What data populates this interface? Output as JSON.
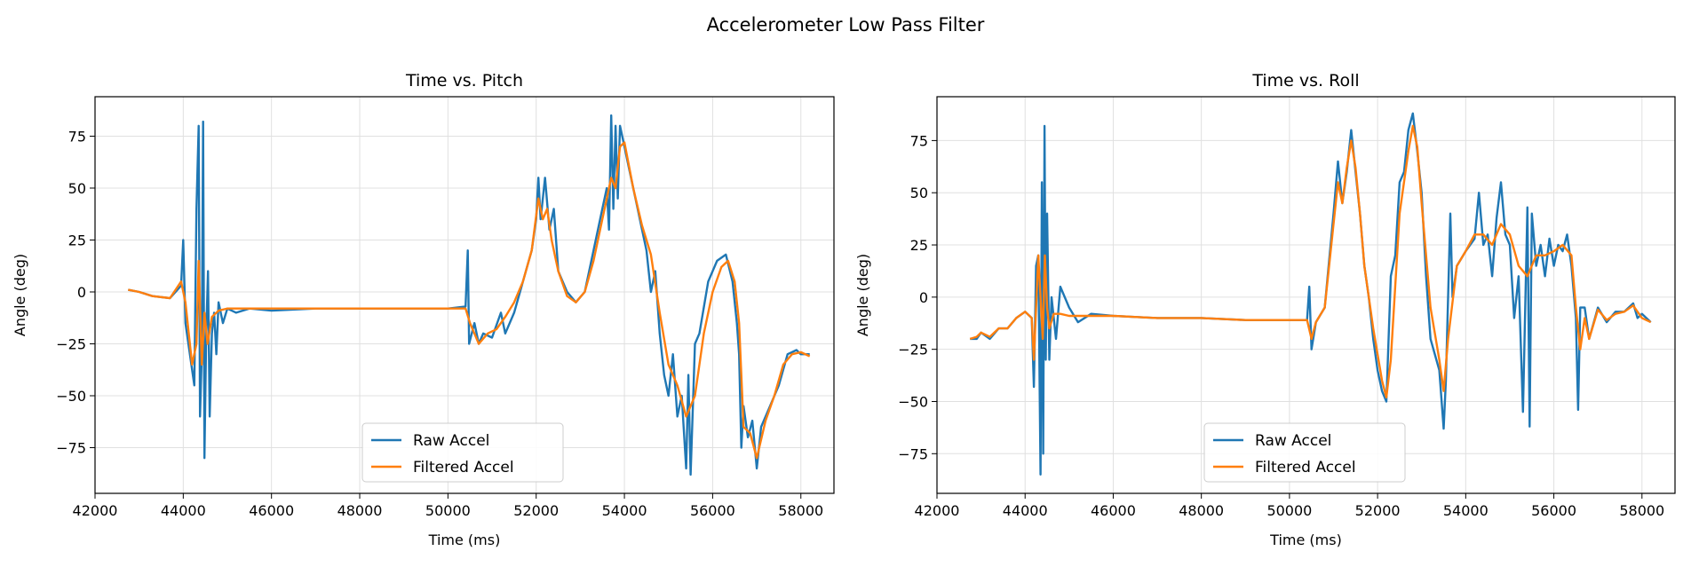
{
  "suptitle": "Accelerometer Low Pass Filter",
  "colors": {
    "raw": "#1f77b4",
    "filtered": "#ff7f0e",
    "grid": "#e0e0e0"
  },
  "chart_data": [
    {
      "type": "line",
      "title": "Time vs. Pitch",
      "xlabel": "Time (ms)",
      "ylabel": "Angle (deg)",
      "xlim": [
        42000,
        58750
      ],
      "ylim": [
        -97,
        94
      ],
      "xticks": [
        42000,
        44000,
        46000,
        48000,
        50000,
        52000,
        54000,
        56000,
        58000
      ],
      "yticks": [
        -75,
        -50,
        -25,
        0,
        25,
        50,
        75
      ],
      "grid": true,
      "legend": "lower center",
      "series": [
        {
          "name": "Raw Accel",
          "x": [
            42750,
            43000,
            43300,
            43700,
            43950,
            44000,
            44050,
            44150,
            44250,
            44300,
            44350,
            44380,
            44420,
            44450,
            44480,
            44520,
            44560,
            44600,
            44650,
            44700,
            44750,
            44800,
            44900,
            45000,
            45200,
            45500,
            46000,
            47000,
            48000,
            49000,
            50000,
            50400,
            50450,
            50480,
            50600,
            50700,
            50800,
            51000,
            51200,
            51300,
            51500,
            51700,
            51900,
            52000,
            52050,
            52100,
            52200,
            52300,
            52400,
            52500,
            52700,
            52900,
            53100,
            53300,
            53500,
            53600,
            53650,
            53700,
            53750,
            53800,
            53850,
            53900,
            54000,
            54100,
            54300,
            54400,
            54500,
            54600,
            54700,
            54800,
            54900,
            55000,
            55100,
            55200,
            55300,
            55400,
            55450,
            55500,
            55600,
            55700,
            55900,
            56100,
            56300,
            56450,
            56550,
            56600,
            56650,
            56700,
            56800,
            56900,
            57000,
            57100,
            57300,
            57500,
            57700,
            57900,
            58000,
            58200
          ],
          "y": [
            1,
            0,
            -2,
            -3,
            3,
            25,
            -15,
            -30,
            -45,
            40,
            80,
            -60,
            -30,
            82,
            -80,
            -20,
            10,
            -60,
            -20,
            -10,
            -30,
            -5,
            -15,
            -8,
            -10,
            -8,
            -9,
            -8,
            -8,
            -8,
            -8,
            -7,
            20,
            -25,
            -15,
            -25,
            -20,
            -22,
            -10,
            -20,
            -10,
            5,
            20,
            35,
            55,
            35,
            55,
            30,
            40,
            10,
            0,
            -5,
            0,
            20,
            40,
            50,
            30,
            85,
            40,
            80,
            45,
            80,
            70,
            60,
            40,
            30,
            20,
            0,
            10,
            -20,
            -40,
            -50,
            -30,
            -60,
            -50,
            -85,
            -40,
            -88,
            -25,
            -20,
            5,
            15,
            18,
            5,
            -15,
            -30,
            -75,
            -55,
            -70,
            -62,
            -85,
            -65,
            -55,
            -45,
            -30,
            -28,
            -30,
            -30
          ]
        },
        {
          "name": "Filtered Accel",
          "x": [
            42750,
            43000,
            43300,
            43700,
            43950,
            44050,
            44200,
            44300,
            44350,
            44420,
            44480,
            44550,
            44650,
            44800,
            45000,
            45500,
            46000,
            47000,
            48000,
            49000,
            50000,
            50400,
            50500,
            50700,
            50900,
            51100,
            51300,
            51500,
            51700,
            51900,
            52050,
            52150,
            52250,
            52350,
            52500,
            52700,
            52900,
            53100,
            53300,
            53500,
            53700,
            53800,
            53900,
            54000,
            54200,
            54400,
            54600,
            54800,
            55000,
            55200,
            55400,
            55600,
            55800,
            56000,
            56200,
            56350,
            56500,
            56600,
            56700,
            56850,
            57000,
            57200,
            57400,
            57600,
            57800,
            58000,
            58200
          ],
          "y": [
            1,
            0,
            -2,
            -3,
            5,
            -5,
            -35,
            -25,
            15,
            -35,
            -10,
            -25,
            -12,
            -9,
            -8,
            -8,
            -8,
            -8,
            -8,
            -8,
            -8,
            -8,
            -15,
            -25,
            -20,
            -18,
            -12,
            -5,
            5,
            20,
            45,
            35,
            40,
            25,
            10,
            -2,
            -5,
            0,
            15,
            35,
            55,
            50,
            70,
            72,
            50,
            32,
            18,
            -10,
            -35,
            -45,
            -60,
            -50,
            -20,
            0,
            12,
            15,
            5,
            -15,
            -65,
            -68,
            -80,
            -62,
            -50,
            -35,
            -30,
            -29,
            -31
          ]
        }
      ]
    },
    {
      "type": "line",
      "title": "Time vs. Roll",
      "xlabel": "Time (ms)",
      "ylabel": "Angle (deg)",
      "xlim": [
        42000,
        58750
      ],
      "ylim": [
        -94,
        96
      ],
      "xticks": [
        42000,
        44000,
        46000,
        48000,
        50000,
        52000,
        54000,
        56000,
        58000
      ],
      "yticks": [
        -75,
        -50,
        -25,
        0,
        25,
        50,
        75
      ],
      "grid": true,
      "legend": "lower center",
      "series": [
        {
          "name": "Raw Accel",
          "x": [
            42750,
            42900,
            43000,
            43200,
            43400,
            43600,
            43800,
            44000,
            44150,
            44200,
            44250,
            44300,
            44350,
            44380,
            44410,
            44440,
            44470,
            44500,
            44550,
            44600,
            44700,
            44800,
            45000,
            45200,
            45500,
            46000,
            47000,
            48000,
            49000,
            50000,
            50400,
            50450,
            50500,
            50600,
            50800,
            51000,
            51100,
            51200,
            51300,
            51400,
            51500,
            51600,
            51700,
            51800,
            51900,
            52000,
            52100,
            52200,
            52300,
            52400,
            52500,
            52600,
            52700,
            52800,
            52900,
            53000,
            53100,
            53200,
            53400,
            53500,
            53550,
            53600,
            53650,
            53700,
            53800,
            54000,
            54200,
            54300,
            54400,
            54500,
            54600,
            54700,
            54800,
            54900,
            55000,
            55100,
            55200,
            55300,
            55400,
            55450,
            55500,
            55600,
            55700,
            55800,
            55900,
            56000,
            56100,
            56200,
            56300,
            56400,
            56500,
            56550,
            56600,
            56700,
            56800,
            57000,
            57200,
            57400,
            57600,
            57800,
            57900,
            58000,
            58200
          ],
          "y": [
            -20,
            -20,
            -17,
            -20,
            -15,
            -15,
            -10,
            -7,
            -10,
            -43,
            15,
            20,
            -85,
            55,
            -75,
            82,
            -30,
            40,
            -30,
            0,
            -20,
            5,
            -5,
            -12,
            -8,
            -9,
            -10,
            -10,
            -11,
            -11,
            -11,
            5,
            -25,
            -12,
            -5,
            40,
            65,
            45,
            60,
            80,
            60,
            40,
            15,
            0,
            -20,
            -35,
            -45,
            -50,
            10,
            20,
            55,
            60,
            80,
            88,
            70,
            50,
            10,
            -20,
            -35,
            -63,
            -40,
            0,
            40,
            0,
            15,
            22,
            28,
            50,
            25,
            30,
            10,
            38,
            55,
            30,
            25,
            -10,
            10,
            -55,
            43,
            -62,
            40,
            15,
            25,
            10,
            28,
            15,
            25,
            22,
            30,
            15,
            -10,
            -54,
            -5,
            -5,
            -20,
            -5,
            -12,
            -7,
            -7,
            -3,
            -10,
            -8,
            -12
          ]
        },
        {
          "name": "Filtered Accel",
          "x": [
            42750,
            42900,
            43000,
            43200,
            43400,
            43600,
            43800,
            44000,
            44150,
            44200,
            44300,
            44400,
            44450,
            44500,
            44550,
            44650,
            44800,
            45000,
            45500,
            46000,
            47000,
            48000,
            49000,
            50000,
            50400,
            50500,
            50600,
            50800,
            51000,
            51100,
            51200,
            51300,
            51400,
            51500,
            51600,
            51700,
            51900,
            52100,
            52200,
            52300,
            52500,
            52700,
            52800,
            52900,
            53000,
            53200,
            53400,
            53500,
            53600,
            53800,
            54000,
            54200,
            54400,
            54600,
            54800,
            55000,
            55200,
            55400,
            55600,
            55800,
            56000,
            56200,
            56400,
            56500,
            56600,
            56700,
            56800,
            57000,
            57200,
            57400,
            57600,
            57800,
            58000,
            58200
          ],
          "y": [
            -20,
            -19,
            -17,
            -19,
            -15,
            -15,
            -10,
            -7,
            -10,
            -30,
            20,
            -20,
            20,
            -5,
            -15,
            -8,
            -8,
            -9,
            -9,
            -9,
            -10,
            -10,
            -11,
            -11,
            -11,
            -20,
            -12,
            -5,
            35,
            55,
            45,
            62,
            75,
            62,
            40,
            15,
            -15,
            -40,
            -48,
            -30,
            40,
            70,
            82,
            72,
            45,
            -5,
            -30,
            -45,
            -20,
            15,
            22,
            30,
            30,
            25,
            35,
            30,
            15,
            10,
            20,
            20,
            22,
            25,
            20,
            -5,
            -25,
            -10,
            -20,
            -6,
            -11,
            -8,
            -7,
            -4,
            -10,
            -12
          ]
        }
      ]
    }
  ]
}
